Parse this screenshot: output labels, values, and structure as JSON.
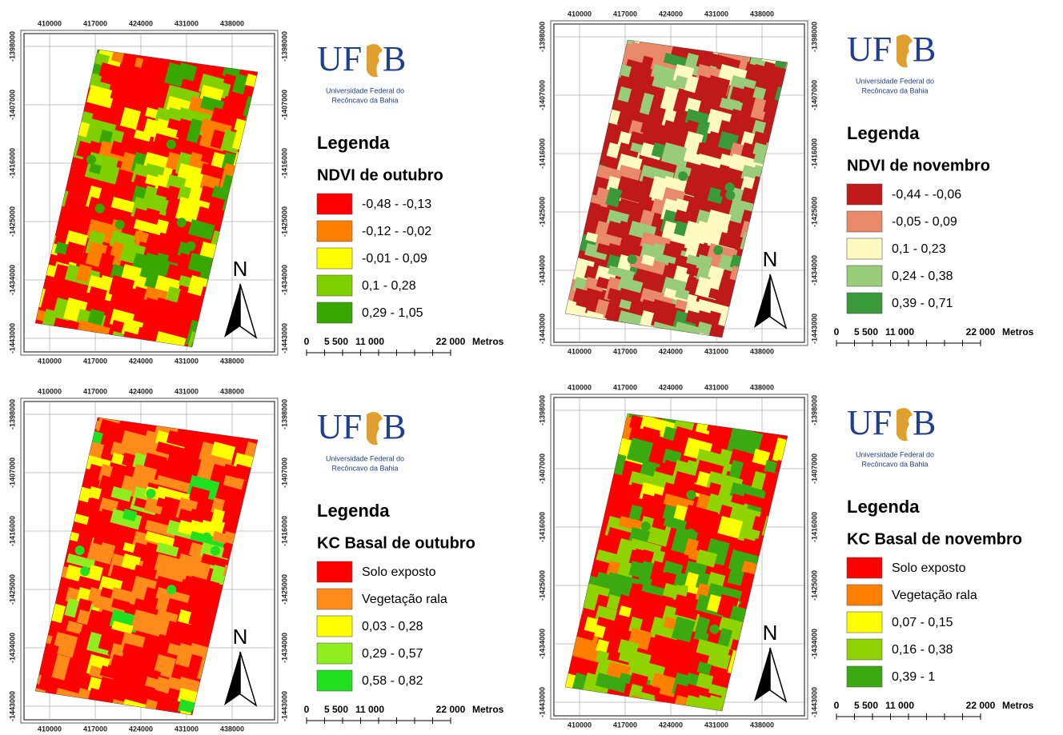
{
  "panels": [
    {
      "logo": {
        "left": "UF",
        "right": "B",
        "line1": "Universidade Federal do",
        "line2": "Recôncavo da Bahia"
      },
      "x_ticks": [
        "410000",
        "417000",
        "424000",
        "431000",
        "438000"
      ],
      "y_ticks": [
        "-1398000",
        "-1407000",
        "-1416000",
        "-1425000",
        "-1434000",
        "-1443000"
      ],
      "legend": {
        "title": "Legenda",
        "subtitle": "NDVI de outubro",
        "items": [
          {
            "label": "-0,48 - -0,13",
            "color": "#ff0000"
          },
          {
            "label": "-0,12 - -0,02",
            "color": "#ff8000"
          },
          {
            "label": "-0,01 - 0,09",
            "color": "#ffff00"
          },
          {
            "label": "0,1 - 0,28",
            "color": "#80d000"
          },
          {
            "label": "0,29 - 1,05",
            "color": "#38a800"
          }
        ]
      },
      "north": "N",
      "scale": [
        "0",
        "5 500",
        "11 000",
        "22 000",
        "Metros"
      ]
    },
    {
      "logo": {
        "left": "UF",
        "right": "B",
        "line1": "Universidade Federal do",
        "line2": "Recôncavo da Bahia"
      },
      "x_ticks": [
        "410000",
        "417000",
        "424000",
        "431000",
        "438000"
      ],
      "y_ticks": [
        "-1398000",
        "-1407000",
        "-1416000",
        "-1425000",
        "-1434000",
        "-1443000"
      ],
      "legend": {
        "title": "Legenda",
        "subtitle": "NDVI de novembro",
        "items": [
          {
            "label": "-0,44 - -0,06",
            "color": "#c0191a"
          },
          {
            "label": "-0,05 - 0,09",
            "color": "#e8896a"
          },
          {
            "label": "0,1 - 0,23",
            "color": "#fffbc0"
          },
          {
            "label": "0,24 - 0,38",
            "color": "#98cc78"
          },
          {
            "label": "0,39 - 0,71",
            "color": "#3a9a3a"
          }
        ]
      },
      "north": "N",
      "scale": [
        "0",
        "5 500",
        "11 000",
        "22 000",
        "Metros"
      ]
    },
    {
      "logo": {
        "left": "UF",
        "right": "B",
        "line1": "Universidade Federal do",
        "line2": "Recôncavo da Bahia"
      },
      "x_ticks": [
        "410000",
        "417000",
        "424000",
        "431000",
        "438000"
      ],
      "y_ticks": [
        "-1398000",
        "-1407000",
        "-1416000",
        "-1425000",
        "-1434000",
        "-1443000"
      ],
      "legend": {
        "title": "Legenda",
        "subtitle": "KC Basal de outubro",
        "items": [
          {
            "label": "Solo exposto",
            "color": "#ff0000"
          },
          {
            "label": "Vegetação rala",
            "color": "#ff8c1a"
          },
          {
            "label": "0,03 - 0,28",
            "color": "#ffff00"
          },
          {
            "label": "0,29 - 0,57",
            "color": "#90ee20"
          },
          {
            "label": "0,58 - 0,82",
            "color": "#20e020"
          }
        ]
      },
      "north": "N",
      "scale": [
        "0",
        "5 500",
        "11 000",
        "22 000",
        "Metros"
      ]
    },
    {
      "logo": {
        "left": "UF",
        "right": "B",
        "line1": "Universidade Federal do",
        "line2": "Recôncavo da Bahia"
      },
      "x_ticks": [
        "410000",
        "417000",
        "424000",
        "431000",
        "438000"
      ],
      "y_ticks": [
        "-1398000",
        "-1407000",
        "-1416000",
        "-1425000",
        "-1434000",
        "-1443000"
      ],
      "legend": {
        "title": "Legenda",
        "subtitle": "KC Basal de novembro",
        "items": [
          {
            "label": "Solo exposto",
            "color": "#ff0000"
          },
          {
            "label": "Vegetação rala",
            "color": "#ff8000"
          },
          {
            "label": "0,07 - 0,15",
            "color": "#ffff00"
          },
          {
            "label": "0,16 - 0,38",
            "color": "#8fd400"
          },
          {
            "label": "0,39 - 1",
            "color": "#3aaa10"
          }
        ]
      },
      "north": "N",
      "scale": [
        "0",
        "5 500",
        "11 000",
        "22 000",
        "Metros"
      ]
    }
  ]
}
